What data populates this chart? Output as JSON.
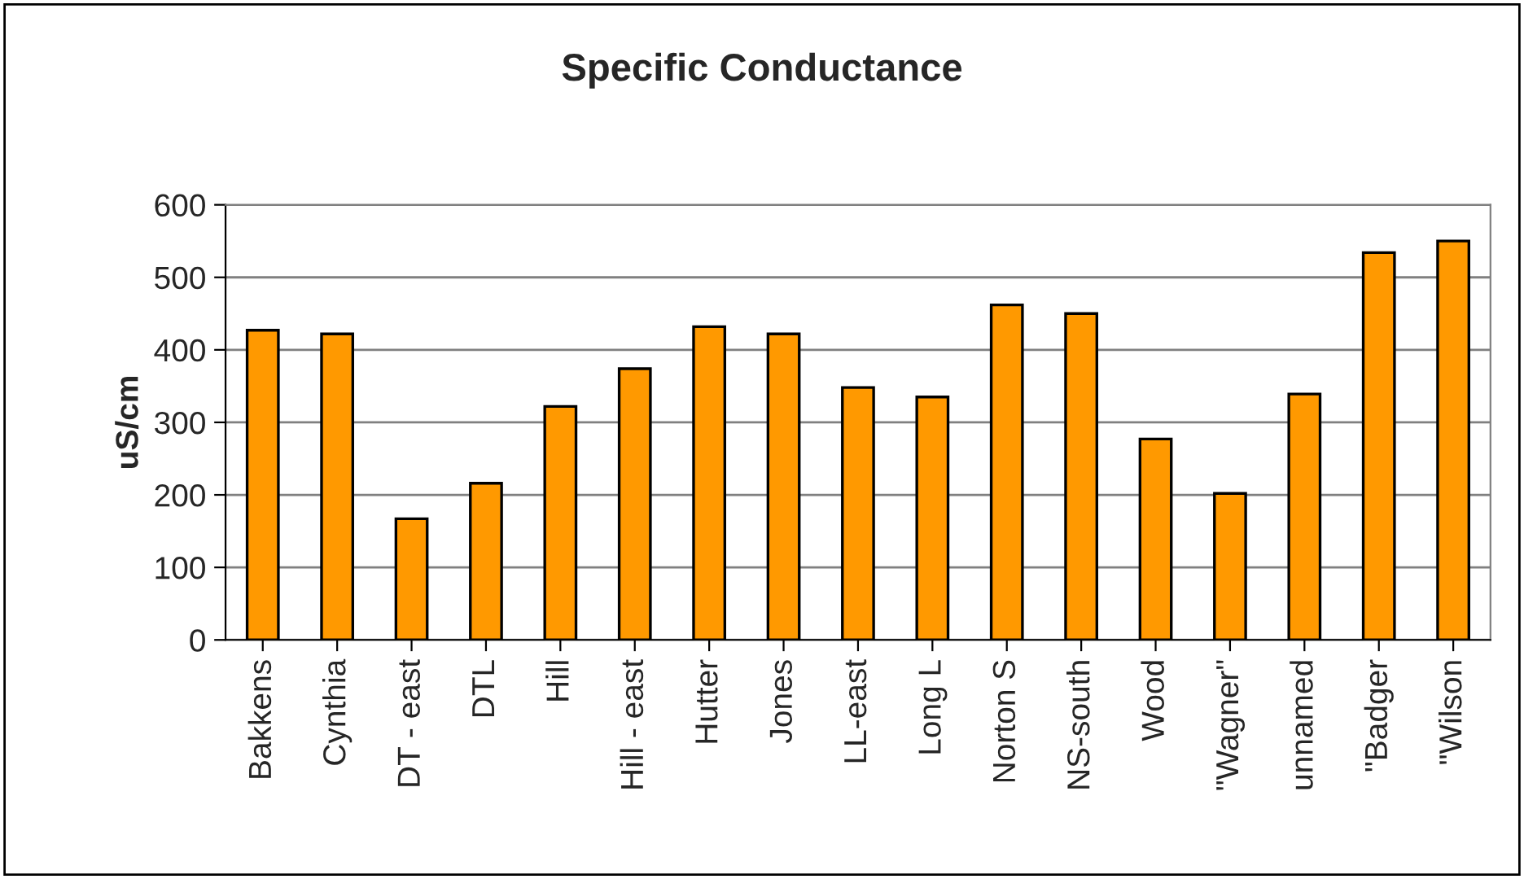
{
  "chart_data": {
    "type": "bar",
    "title": "Specific Conductance",
    "ylabel": "uS/cm",
    "categories": [
      "Bakkens",
      "Cynthia",
      "DT - east",
      "DTL",
      "Hill",
      "Hill - east",
      "Hutter",
      "Jones",
      "LL-east",
      "Long L",
      "Norton S",
      "NS-south",
      "Wood",
      "\"Wagner\"",
      "unnamed",
      "\"Badger",
      "\"Wilson"
    ],
    "values": [
      427,
      422,
      167,
      216,
      322,
      374,
      432,
      422,
      348,
      335,
      462,
      450,
      277,
      202,
      339,
      534,
      550
    ],
    "color": "#ff9900",
    "ylim": [
      0,
      600
    ],
    "yticks": [
      0,
      100,
      200,
      300,
      400,
      500,
      600
    ],
    "grid": "y"
  }
}
